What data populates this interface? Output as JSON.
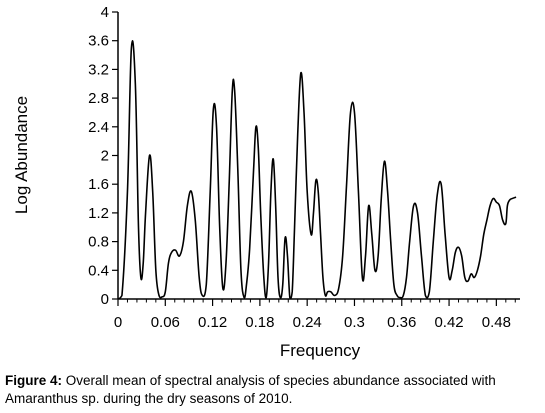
{
  "chart_data": {
    "type": "line",
    "xlabel": "Frequency",
    "ylabel": "Log Abundance",
    "xlim": [
      0,
      0.51
    ],
    "ylim": [
      0,
      4
    ],
    "x_ticks": [
      0,
      0.06,
      0.12,
      0.18,
      0.24,
      0.3,
      0.36,
      0.42,
      0.48
    ],
    "x_tick_labels": [
      "0",
      "0.06",
      "0.12",
      "0.18",
      "0.24",
      "0.3",
      "0.36",
      "0.42",
      "0.48"
    ],
    "y_ticks": [
      0,
      0.4,
      0.8,
      1.2,
      1.6,
      2,
      2.4,
      2.8,
      3.2,
      3.6,
      4
    ],
    "y_tick_labels": [
      "0",
      "0.4",
      "0.8",
      "1.2",
      "1.6",
      "2",
      "2.4",
      "2.8",
      "3.2",
      "3.6",
      "4"
    ],
    "grid": false,
    "line_color": "#000000",
    "series": [
      {
        "x": [
          0,
          0.005,
          0.012,
          0.017,
          0.022,
          0.026,
          0.029,
          0.032,
          0.035,
          0.04,
          0.044,
          0.048,
          0.052,
          0.056,
          0.06,
          0.064,
          0.068,
          0.073,
          0.078,
          0.083,
          0.088,
          0.093,
          0.098,
          0.103,
          0.107,
          0.112,
          0.117,
          0.121,
          0.125,
          0.129,
          0.133,
          0.137,
          0.141,
          0.145,
          0.148,
          0.152,
          0.156,
          0.16,
          0.163,
          0.167,
          0.172,
          0.175,
          0.178,
          0.181,
          0.185,
          0.188,
          0.191,
          0.194,
          0.197,
          0.2,
          0.203,
          0.206,
          0.209,
          0.212,
          0.215,
          0.218,
          0.221,
          0.224,
          0.228,
          0.232,
          0.236,
          0.24,
          0.245,
          0.248,
          0.251,
          0.254,
          0.257,
          0.26,
          0.263,
          0.266,
          0.27,
          0.275,
          0.28,
          0.285,
          0.29,
          0.295,
          0.3,
          0.305,
          0.31,
          0.314,
          0.318,
          0.322,
          0.326,
          0.33,
          0.334,
          0.338,
          0.342,
          0.346,
          0.35,
          0.354,
          0.358,
          0.362,
          0.366,
          0.37,
          0.375,
          0.38,
          0.385,
          0.39,
          0.395,
          0.4,
          0.405,
          0.41,
          0.415,
          0.42,
          0.424,
          0.428,
          0.432,
          0.436,
          0.44,
          0.444,
          0.448,
          0.452,
          0.456,
          0.46,
          0.464,
          0.468,
          0.472,
          0.476,
          0.48,
          0.484,
          0.488,
          0.492,
          0.494,
          0.497,
          0.5,
          0.505
        ],
        "y": [
          0,
          0.05,
          1.5,
          3.5,
          3.0,
          1.0,
          0.3,
          0.5,
          1.2,
          2.0,
          1.5,
          0.4,
          0.05,
          0.03,
          0.1,
          0.5,
          0.65,
          0.68,
          0.6,
          0.8,
          1.3,
          1.5,
          1.1,
          0.3,
          0.05,
          0.2,
          1.5,
          2.65,
          2.4,
          1.0,
          0.15,
          0.5,
          1.6,
          2.9,
          2.9,
          1.8,
          0.4,
          0.02,
          0.2,
          0.7,
          1.8,
          2.4,
          2.1,
          1.2,
          0.3,
          0.02,
          0.5,
          1.5,
          1.95,
          1.3,
          0.3,
          0.02,
          0.2,
          0.85,
          0.6,
          0.02,
          0.1,
          1.0,
          2.3,
          3.15,
          2.6,
          1.5,
          0.9,
          1.2,
          1.65,
          1.5,
          0.9,
          0.3,
          0.05,
          0.1,
          0.1,
          0.05,
          0.15,
          0.6,
          1.6,
          2.6,
          2.6,
          1.5,
          0.3,
          0.6,
          1.3,
          0.9,
          0.4,
          0.6,
          1.4,
          1.92,
          1.5,
          0.8,
          0.2,
          0.05,
          0.02,
          0.05,
          0.3,
          0.8,
          1.3,
          1.2,
          0.6,
          0.05,
          0.1,
          0.8,
          1.45,
          1.6,
          0.9,
          0.3,
          0.4,
          0.65,
          0.72,
          0.6,
          0.3,
          0.25,
          0.35,
          0.3,
          0.4,
          0.6,
          0.9,
          1.1,
          1.3,
          1.4,
          1.35,
          1.3,
          1.1,
          1.05,
          1.3,
          1.38,
          1.4,
          1.42
        ]
      }
    ]
  },
  "caption": {
    "label": "Figure 4:",
    "text": " Overall mean of spectral analysis of species abundance associated with Amaranthus sp.  during the dry seasons of 2010."
  }
}
